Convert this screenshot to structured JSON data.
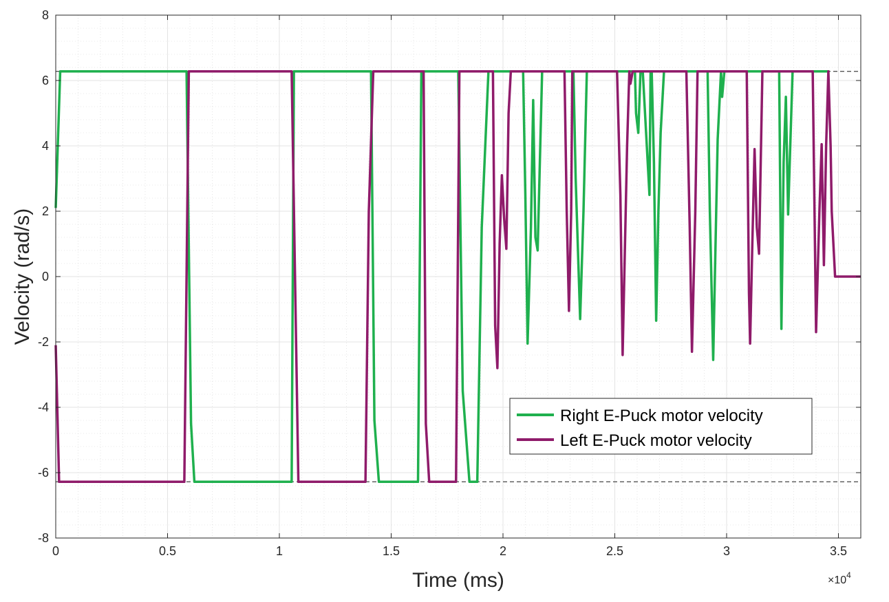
{
  "chart_data": {
    "type": "line",
    "xlabel": "Time (ms)",
    "ylabel": "Velocity (rad/s)",
    "xlim": [
      0,
      36000
    ],
    "ylim": [
      -8,
      8
    ],
    "x_exponent_label": "×10",
    "x_exponent_power": "4",
    "x_ticks": [
      0,
      5000,
      10000,
      15000,
      20000,
      25000,
      30000,
      35000
    ],
    "x_tick_labels": [
      "0",
      "0.5",
      "1",
      "1.5",
      "2",
      "2.5",
      "3",
      "3.5"
    ],
    "y_ticks": [
      -8,
      -6,
      -4,
      -2,
      0,
      2,
      4,
      6,
      8
    ],
    "y_tick_labels": [
      "-8",
      "-6",
      "-4",
      "-2",
      "0",
      "2",
      "4",
      "6",
      "8"
    ],
    "grid": "on (major and minor)",
    "legend_position": "lower-right",
    "reference_lines": [
      6.28,
      -6.28
    ],
    "colors": {
      "right": "#1fb04e",
      "left": "#8f1b6a",
      "reference": "#555555",
      "grid_major": "#e3e3e3",
      "grid_minor": "#d2d2d2",
      "axis": "#262626"
    },
    "series": [
      {
        "name": "Right E-Puck motor velocity",
        "color": "#1fb04e",
        "points": [
          [
            0,
            2.1
          ],
          [
            200,
            6.28
          ],
          [
            5850,
            6.28
          ],
          [
            6050,
            -4.5
          ],
          [
            6200,
            -6.28
          ],
          [
            10550,
            -6.28
          ],
          [
            10650,
            6.28
          ],
          [
            14100,
            6.28
          ],
          [
            14250,
            -4.4
          ],
          [
            14450,
            -6.28
          ],
          [
            16200,
            -6.28
          ],
          [
            16350,
            6.28
          ],
          [
            18000,
            6.28
          ],
          [
            18200,
            -3.5
          ],
          [
            18500,
            -6.28
          ],
          [
            18850,
            -6.28
          ],
          [
            19050,
            1.5
          ],
          [
            19350,
            6.28
          ],
          [
            20900,
            6.28
          ],
          [
            21000,
            2.5
          ],
          [
            21100,
            -2.05
          ],
          [
            21250,
            1.5
          ],
          [
            21350,
            5.4
          ],
          [
            21450,
            1.2
          ],
          [
            21550,
            0.8
          ],
          [
            21750,
            6.28
          ],
          [
            23150,
            6.28
          ],
          [
            23250,
            3.0
          ],
          [
            23450,
            -1.3
          ],
          [
            23600,
            2.0
          ],
          [
            23750,
            6.28
          ],
          [
            25900,
            6.28
          ],
          [
            25950,
            5.0
          ],
          [
            26050,
            4.4
          ],
          [
            26150,
            6.28
          ],
          [
            26250,
            6.28
          ],
          [
            26550,
            2.5
          ],
          [
            26600,
            6.28
          ],
          [
            26650,
            6.28
          ],
          [
            26750,
            3.5
          ],
          [
            26850,
            -1.35
          ],
          [
            26950,
            2.0
          ],
          [
            27050,
            4.4
          ],
          [
            27200,
            6.28
          ],
          [
            29150,
            6.28
          ],
          [
            29250,
            2.0
          ],
          [
            29400,
            -2.55
          ],
          [
            29600,
            4.2
          ],
          [
            29750,
            6.28
          ],
          [
            29800,
            5.5
          ],
          [
            29900,
            6.28
          ],
          [
            31750,
            6.28
          ],
          [
            31800,
            6.28
          ],
          [
            31900,
            6.28
          ],
          [
            32350,
            6.28
          ],
          [
            32450,
            -1.6
          ],
          [
            32550,
            3.5
          ],
          [
            32650,
            5.5
          ],
          [
            32750,
            1.9
          ],
          [
            32950,
            6.28
          ],
          [
            34600,
            6.28
          ]
        ]
      },
      {
        "name": "Left E-Puck motor velocity",
        "color": "#8f1b6a",
        "points": [
          [
            0,
            -2.1
          ],
          [
            150,
            -6.28
          ],
          [
            5750,
            -6.28
          ],
          [
            5950,
            6.28
          ],
          [
            10550,
            6.28
          ],
          [
            10850,
            -6.28
          ],
          [
            13850,
            -6.28
          ],
          [
            14000,
            2.0
          ],
          [
            14200,
            6.28
          ],
          [
            16450,
            6.28
          ],
          [
            16550,
            -4.5
          ],
          [
            16700,
            -6.28
          ],
          [
            17900,
            -6.28
          ],
          [
            18050,
            6.28
          ],
          [
            19550,
            6.28
          ],
          [
            19650,
            -1.5
          ],
          [
            19750,
            -2.8
          ],
          [
            19850,
            1.0
          ],
          [
            19950,
            3.1
          ],
          [
            20050,
            1.8
          ],
          [
            20150,
            0.85
          ],
          [
            20250,
            5.0
          ],
          [
            20350,
            6.28
          ],
          [
            22750,
            6.28
          ],
          [
            22850,
            2.0
          ],
          [
            22950,
            -1.05
          ],
          [
            23050,
            2.0
          ],
          [
            23100,
            6.28
          ],
          [
            25100,
            6.28
          ],
          [
            25250,
            2.5
          ],
          [
            25350,
            -2.4
          ],
          [
            25550,
            4.0
          ],
          [
            25650,
            6.28
          ],
          [
            25700,
            5.9
          ],
          [
            25800,
            6.28
          ],
          [
            28200,
            6.28
          ],
          [
            28350,
            1.5
          ],
          [
            28450,
            -2.3
          ],
          [
            28600,
            2.0
          ],
          [
            28700,
            6.28
          ],
          [
            30900,
            6.28
          ],
          [
            31000,
            -0.5
          ],
          [
            31050,
            -2.05
          ],
          [
            31150,
            1.0
          ],
          [
            31250,
            3.9
          ],
          [
            31350,
            1.5
          ],
          [
            31450,
            0.7
          ],
          [
            31600,
            6.28
          ],
          [
            33850,
            6.28
          ],
          [
            33950,
            1.0
          ],
          [
            34000,
            -1.7
          ],
          [
            34150,
            2.0
          ],
          [
            34250,
            4.05
          ],
          [
            34350,
            0.35
          ],
          [
            34450,
            4.0
          ],
          [
            34550,
            6.28
          ],
          [
            34650,
            4.0
          ],
          [
            34700,
            2.0
          ],
          [
            34850,
            0
          ],
          [
            36000,
            0
          ]
        ]
      }
    ]
  }
}
